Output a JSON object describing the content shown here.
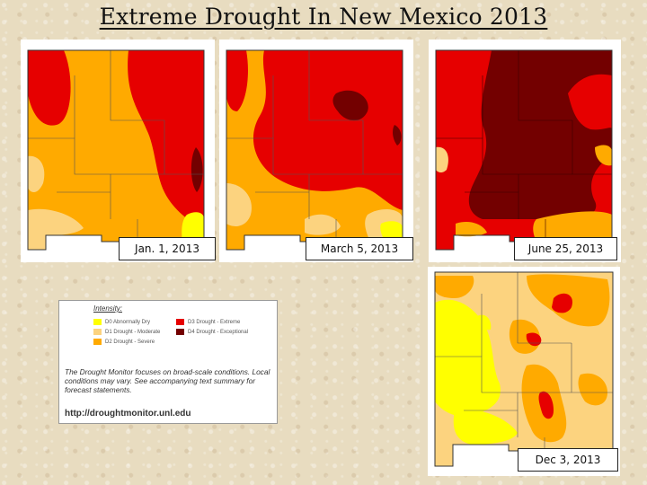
{
  "title": "Extreme Drought In New Mexico 2013",
  "maps": [
    {
      "date": "Jan. 1, 2013"
    },
    {
      "date": "March 5, 2013"
    },
    {
      "date": "June 25, 2013"
    },
    {
      "date": "Dec 3, 2013"
    }
  ],
  "colors": {
    "D0": "#ffff00",
    "D1": "#fcd37f",
    "D2": "#ffaa00",
    "D3": "#e60000",
    "D4": "#730000"
  },
  "legend": {
    "heading": "Intensity:",
    "items": [
      {
        "label": "D0 Abnormally Dry",
        "color": "#ffff00"
      },
      {
        "label": "D1 Drought - Moderate",
        "color": "#fcd37f"
      },
      {
        "label": "D2 Drought - Severe",
        "color": "#ffaa00"
      },
      {
        "label": "D3 Drought - Extreme",
        "color": "#e60000"
      },
      {
        "label": "D4 Drought - Exceptional",
        "color": "#730000"
      }
    ],
    "note": "The Drought Monitor focuses on broad-scale conditions. Local conditions may vary. See accompanying text summary for forecast statements.",
    "url": "http://droughtmonitor.unl.edu"
  }
}
